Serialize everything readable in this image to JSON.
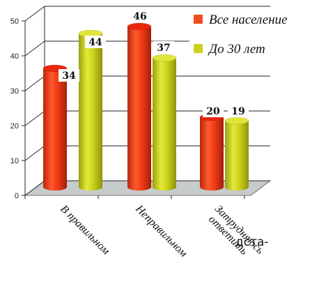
{
  "chart_data": {
    "type": "bar",
    "categories": [
      "В правильном",
      "Неправильном",
      "Затрудняюсь ответить"
    ],
    "category_lines": [
      [
        "В правильном"
      ],
      [
        "Неправильном"
      ],
      [
        "Затрудняюсь",
        "ответить"
      ]
    ],
    "series": [
      {
        "name": "Все население",
        "values": [
          34,
          46,
          20
        ],
        "color": "#f04a1f"
      },
      {
        "name": "До 30 лет",
        "values": [
          44,
          37,
          19
        ],
        "color": "#cbd21a"
      }
    ],
    "ylim": [
      0,
      50
    ],
    "yticks": [
      0,
      10,
      20,
      30,
      40,
      50
    ],
    "grid": true,
    "legend": "top-right",
    "floor_color": "#c6cbcc"
  },
  "fragment_text": "дста-"
}
